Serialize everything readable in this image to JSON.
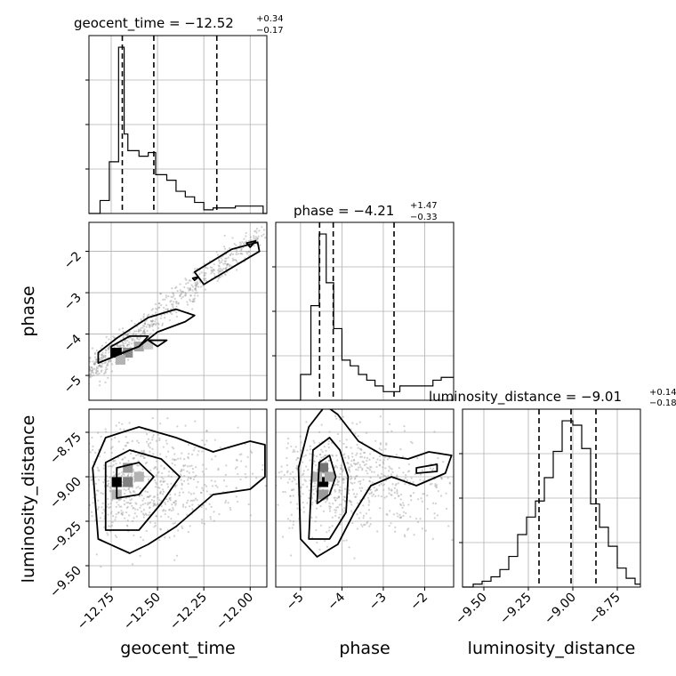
{
  "chart_data": {
    "type": "corner",
    "parameters": [
      "geocent_time",
      "phase",
      "luminosity_distance"
    ],
    "axis_labels": [
      "geocent_time",
      "phase",
      "luminosity_distance"
    ],
    "ranges": {
      "geocent_time": [
        -12.87,
        -11.91
      ],
      "phase": [
        -5.6,
        -1.3
      ],
      "luminosity_distance": [
        -9.62,
        -8.62
      ]
    },
    "ticks": {
      "geocent_time": {
        "values": [
          -12.75,
          -12.5,
          -12.25,
          -12.0
        ],
        "labels": [
          "−12.75",
          "−12.50",
          "−12.25",
          "−12.00"
        ]
      },
      "phase": {
        "values": [
          -5,
          -4,
          -3,
          -2
        ],
        "labels": [
          "−5",
          "−4",
          "−3",
          "−2"
        ]
      },
      "luminosity_distance": {
        "values": [
          -9.5,
          -9.25,
          -9.0,
          -8.75
        ],
        "labels": [
          "−9.50",
          "−9.25",
          "−9.00",
          "−8.75"
        ]
      }
    },
    "marginals": [
      {
        "parameter": "geocent_time",
        "title": {
          "main": "geocent_time = −12.52",
          "upper": "+0.34",
          "lower": "−0.17"
        },
        "quantiles": [
          -12.69,
          -12.52,
          -12.18
        ],
        "bin_edges": [
          -12.87,
          -12.81,
          -12.76,
          -12.71,
          -12.68,
          -12.66,
          -12.6,
          -12.55,
          -12.51,
          -12.45,
          -12.4,
          -12.35,
          -12.3,
          -12.25,
          -12.2,
          -12.15,
          -12.08,
          -12.04,
          -12.0,
          -11.93,
          -11.91
        ],
        "counts": [
          0.0,
          0.07,
          0.28,
          0.9,
          0.43,
          0.34,
          0.31,
          0.33,
          0.21,
          0.18,
          0.12,
          0.09,
          0.06,
          0.02,
          0.03,
          0.03,
          0.04,
          0.04,
          0.04,
          0.0
        ]
      },
      {
        "parameter": "phase",
        "title": {
          "main": "phase = −4.21",
          "upper": "+1.47",
          "lower": "−0.33"
        },
        "quantiles": [
          -4.54,
          -4.21,
          -2.74
        ],
        "bin_edges": [
          -5.6,
          -5.0,
          -4.75,
          -4.55,
          -4.38,
          -4.2,
          -4.0,
          -3.8,
          -3.6,
          -3.4,
          -3.2,
          -3.0,
          -2.8,
          -2.6,
          -2.4,
          -2.2,
          -2.0,
          -1.8,
          -1.6,
          -1.3
        ],
        "counts": [
          0.0,
          0.09,
          0.33,
          0.58,
          0.41,
          0.25,
          0.14,
          0.12,
          0.09,
          0.07,
          0.05,
          0.03,
          0.03,
          0.05,
          0.05,
          0.05,
          0.05,
          0.07,
          0.08
        ]
      },
      {
        "parameter": "luminosity_distance",
        "title": {
          "main": "luminosity_distance = −9.01",
          "upper": "+0.14",
          "lower": "−0.18"
        },
        "quantiles": [
          -9.19,
          -9.01,
          -8.87
        ],
        "bin_edges": [
          -9.62,
          -9.56,
          -9.51,
          -9.46,
          -9.41,
          -9.36,
          -9.31,
          -9.26,
          -9.21,
          -9.16,
          -9.11,
          -9.06,
          -9.0,
          -8.95,
          -8.9,
          -8.85,
          -8.8,
          -8.75,
          -8.7,
          -8.65,
          -8.62
        ],
        "counts": [
          0.0,
          0.02,
          0.04,
          0.07,
          0.12,
          0.21,
          0.36,
          0.48,
          0.59,
          0.75,
          0.93,
          1.14,
          1.11,
          0.95,
          0.57,
          0.41,
          0.28,
          0.13,
          0.06,
          0.02
        ]
      }
    ],
    "joints": [
      {
        "x": "geocent_time",
        "y": "phase",
        "hist_cells": [
          [
            -12.72,
            -4.45,
            1.0
          ],
          [
            -12.66,
            -4.45,
            0.45
          ],
          [
            -12.6,
            -4.3,
            0.35
          ],
          [
            -12.7,
            -4.62,
            0.3
          ],
          [
            -12.55,
            -4.25,
            0.2
          ]
        ],
        "contours": [
          [
            [
              -12.82,
              -4.7
            ],
            [
              -12.6,
              -4.3
            ],
            [
              -12.5,
              -3.95
            ],
            [
              -12.35,
              -3.7
            ],
            [
              -12.3,
              -3.55
            ],
            [
              -12.4,
              -3.4
            ],
            [
              -12.55,
              -3.6
            ],
            [
              -12.72,
              -4.1
            ],
            [
              -12.82,
              -4.45
            ],
            [
              -12.82,
              -4.7
            ]
          ],
          [
            [
              -12.75,
              -4.55
            ],
            [
              -12.6,
              -4.3
            ],
            [
              -12.55,
              -4.05
            ],
            [
              -12.65,
              -4.05
            ],
            [
              -12.75,
              -4.3
            ],
            [
              -12.75,
              -4.55
            ]
          ],
          [
            [
              -12.5,
              -4.3
            ],
            [
              -12.45,
              -4.15
            ],
            [
              -12.55,
              -4.15
            ],
            [
              -12.5,
              -4.3
            ]
          ],
          [
            [
              -12.25,
              -2.8
            ],
            [
              -11.95,
              -2.0
            ],
            [
              -11.96,
              -1.78
            ],
            [
              -12.1,
              -1.95
            ],
            [
              -12.3,
              -2.5
            ],
            [
              -12.25,
              -2.8
            ]
          ],
          [
            [
              -12.02,
              -1.8
            ],
            [
              -11.97,
              -1.75
            ],
            [
              -12.0,
              -1.9
            ],
            [
              -12.02,
              -1.8
            ]
          ],
          [
            [
              -12.31,
              -2.65
            ],
            [
              -12.28,
              -2.62
            ],
            [
              -12.3,
              -2.7
            ],
            [
              -12.31,
              -2.65
            ]
          ]
        ],
        "scatter_trend": [
          [
            -12.87,
            -4.9
          ],
          [
            -11.92,
            -1.5
          ]
        ]
      },
      {
        "x": "geocent_time",
        "y": "luminosity_distance",
        "hist_cells": [
          [
            -12.72,
            -9.03,
            1.0
          ],
          [
            -12.66,
            -9.03,
            0.5
          ],
          [
            -12.66,
            -8.95,
            0.4
          ],
          [
            -12.6,
            -9.0,
            0.3
          ],
          [
            -12.72,
            -9.1,
            0.3
          ]
        ],
        "contours": [
          [
            [
              -12.82,
              -9.35
            ],
            [
              -12.65,
              -9.43
            ],
            [
              -12.55,
              -9.38
            ],
            [
              -12.4,
              -9.28
            ],
            [
              -12.2,
              -9.1
            ],
            [
              -12.0,
              -9.07
            ],
            [
              -11.92,
              -9.0
            ],
            [
              -11.92,
              -8.82
            ],
            [
              -12.0,
              -8.8
            ],
            [
              -12.2,
              -8.86
            ],
            [
              -12.4,
              -8.78
            ],
            [
              -12.6,
              -8.72
            ],
            [
              -12.78,
              -8.78
            ],
            [
              -12.85,
              -8.95
            ],
            [
              -12.82,
              -9.35
            ]
          ],
          [
            [
              -12.78,
              -9.3
            ],
            [
              -12.6,
              -9.3
            ],
            [
              -12.48,
              -9.15
            ],
            [
              -12.38,
              -9.0
            ],
            [
              -12.48,
              -8.9
            ],
            [
              -12.65,
              -8.85
            ],
            [
              -12.78,
              -8.92
            ],
            [
              -12.78,
              -9.3
            ]
          ],
          [
            [
              -12.72,
              -9.12
            ],
            [
              -12.6,
              -9.1
            ],
            [
              -12.52,
              -9.0
            ],
            [
              -12.6,
              -8.92
            ],
            [
              -12.72,
              -8.95
            ],
            [
              -12.72,
              -9.12
            ]
          ]
        ]
      },
      {
        "x": "phase",
        "y": "luminosity_distance",
        "hist_cells": [
          [
            -4.45,
            -9.03,
            1.0
          ],
          [
            -4.45,
            -8.95,
            0.55
          ],
          [
            -4.45,
            -9.1,
            0.4
          ],
          [
            -4.3,
            -9.0,
            0.35
          ],
          [
            -4.6,
            -9.0,
            0.3
          ]
        ],
        "contours": [
          [
            [
              -5.0,
              -9.35
            ],
            [
              -4.6,
              -9.45
            ],
            [
              -4.1,
              -9.38
            ],
            [
              -3.7,
              -9.2
            ],
            [
              -3.3,
              -9.05
            ],
            [
              -2.8,
              -9.0
            ],
            [
              -2.2,
              -9.05
            ],
            [
              -1.5,
              -8.98
            ],
            [
              -1.35,
              -8.88
            ],
            [
              -1.9,
              -8.86
            ],
            [
              -2.4,
              -8.9
            ],
            [
              -3.0,
              -8.88
            ],
            [
              -3.6,
              -8.8
            ],
            [
              -4.1,
              -8.65
            ],
            [
              -4.4,
              -8.6
            ],
            [
              -4.8,
              -8.72
            ],
            [
              -5.05,
              -8.95
            ],
            [
              -5.0,
              -9.35
            ]
          ],
          [
            [
              -4.8,
              -9.35
            ],
            [
              -4.3,
              -9.35
            ],
            [
              -3.9,
              -9.2
            ],
            [
              -3.85,
              -9.0
            ],
            [
              -4.05,
              -8.85
            ],
            [
              -4.3,
              -8.78
            ],
            [
              -4.7,
              -8.85
            ],
            [
              -4.8,
              -9.35
            ]
          ],
          [
            [
              -4.6,
              -9.15
            ],
            [
              -4.3,
              -9.1
            ],
            [
              -4.15,
              -9.0
            ],
            [
              -4.3,
              -8.88
            ],
            [
              -4.55,
              -8.92
            ],
            [
              -4.6,
              -9.15
            ]
          ],
          [
            [
              -2.2,
              -8.98
            ],
            [
              -1.7,
              -8.97
            ],
            [
              -1.7,
              -8.93
            ],
            [
              -2.2,
              -8.95
            ],
            [
              -2.2,
              -8.98
            ]
          ]
        ]
      }
    ]
  }
}
